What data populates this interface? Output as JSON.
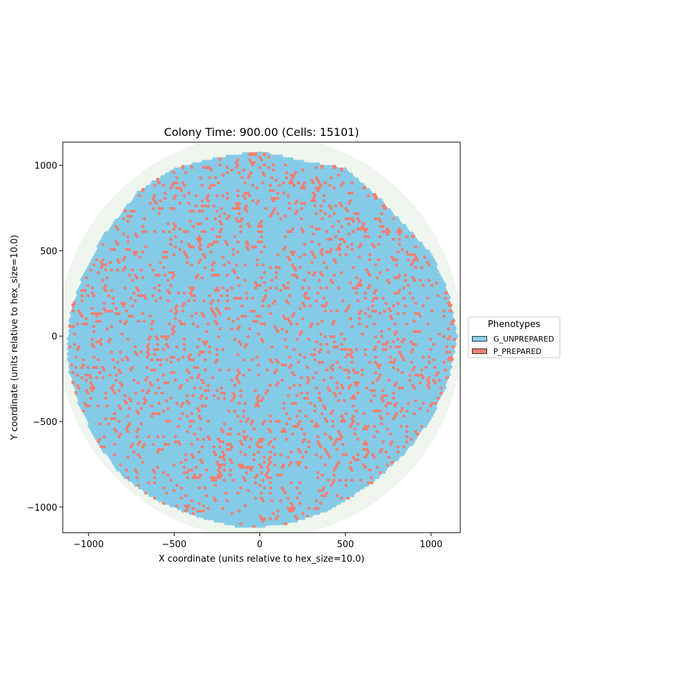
{
  "chart_data": {
    "type": "scatter",
    "title": "Colony Time: 900.00 (Cells: 15101)",
    "xlabel": "X coordinate (units relative to hex_size=10.0)",
    "ylabel": "Y coordinate (units relative to hex_size=10.0)",
    "xlim": [
      -1150,
      1170
    ],
    "ylim": [
      -1150,
      1135
    ],
    "xticks": [
      -1000,
      -500,
      0,
      500,
      1000
    ],
    "yticks": [
      -1000,
      -500,
      0,
      500,
      1000
    ],
    "xtick_labels": [
      "−1000",
      "−500",
      "0",
      "500",
      "1000"
    ],
    "ytick_labels": [
      "−1000",
      "−500",
      "0",
      "500",
      "1000"
    ],
    "grid": false,
    "background_region": {
      "center": [
        0,
        0
      ],
      "radius": 1180,
      "color": "#eef6ee"
    },
    "colony": {
      "approx_extent": {
        "x": [
          -1120,
          1150
        ],
        "y": [
          -1120,
          1110
        ]
      },
      "boundary": [
        [
          -1120,
          -50
        ],
        [
          -1100,
          150
        ],
        [
          -1020,
          380
        ],
        [
          -900,
          600
        ],
        [
          -700,
          850
        ],
        [
          -500,
          980
        ],
        [
          -250,
          1040
        ],
        [
          0,
          1080
        ],
        [
          250,
          1020
        ],
        [
          500,
          980
        ],
        [
          700,
          800
        ],
        [
          850,
          640
        ],
        [
          1000,
          480
        ],
        [
          1100,
          250
        ],
        [
          1150,
          0
        ],
        [
          1100,
          -250
        ],
        [
          1000,
          -480
        ],
        [
          850,
          -680
        ],
        [
          650,
          -860
        ],
        [
          400,
          -1020
        ],
        [
          150,
          -1100
        ],
        [
          -100,
          -1120
        ],
        [
          -350,
          -1060
        ],
        [
          -600,
          -960
        ],
        [
          -800,
          -820
        ],
        [
          -950,
          -620
        ],
        [
          -1060,
          -380
        ],
        [
          -1110,
          -200
        ]
      ]
    },
    "series": [
      {
        "name": "G_UNPREPARED",
        "color": "#87ceeb",
        "fraction": 0.87
      },
      {
        "name": "P_PREPARED",
        "color": "#fa8072",
        "fraction": 0.13
      }
    ],
    "legend": {
      "title": "Phenotypes",
      "placement": "right",
      "items": [
        {
          "label": "G_UNPREPARED",
          "color": "#87ceeb"
        },
        {
          "label": "P_PREPARED",
          "color": "#fa8072"
        }
      ]
    }
  }
}
